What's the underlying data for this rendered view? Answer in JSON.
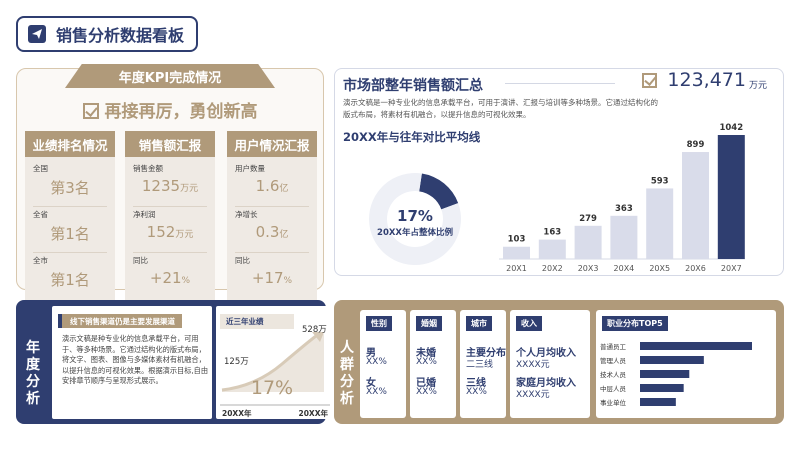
{
  "header": {
    "title": "销售分析数据看板"
  },
  "kpi": {
    "title": "年度KPI完成情况",
    "slogan": "再接再厉，勇创新高",
    "columns": [
      {
        "title": "业绩排名情况",
        "cells": [
          {
            "label": "全国",
            "value": "第3名",
            "unit": ""
          },
          {
            "label": "全省",
            "value": "第1名",
            "unit": ""
          },
          {
            "label": "全市",
            "value": "第1名",
            "unit": ""
          }
        ]
      },
      {
        "title": "销售额汇报",
        "cells": [
          {
            "label": "销售金额",
            "value": "1235",
            "unit": "万元"
          },
          {
            "label": "净利润",
            "value": "152",
            "unit": "万元"
          },
          {
            "label": "同比",
            "value": "+21",
            "unit": "%"
          }
        ]
      },
      {
        "title": "用户情况汇报",
        "cells": [
          {
            "label": "用户数量",
            "value": "1.6",
            "unit": "亿"
          },
          {
            "label": "净增长",
            "value": "0.3",
            "unit": "亿"
          },
          {
            "label": "同比",
            "value": "+17",
            "unit": "%"
          }
        ]
      }
    ]
  },
  "market": {
    "title": "市场部整年销售额汇总",
    "total": "123,471",
    "total_unit": "万元",
    "description": "演示文稿是一种专业化的信息承载平台，可用于演讲、汇报与培训等多种场景。它通过结构化的版式布局，将素材有机融合，以提升信息的可视化效果。",
    "chart_title": "20XX年与往年对比平均线",
    "donut_value": "17%",
    "donut_label": "20XX年占整体比例"
  },
  "annual": {
    "title": "年度分析",
    "channel_tag": "线下销售渠道仍是主要发展渠道",
    "channel_desc": "演示文稿是种专业化的信息承载平台，可用于、等多种场景。它通过结构化的版式布局，将文字、图表、图像与多媒体素材有机融合，以提升信息的可视化效果。根据演示目标,自由安排章节顺序与呈现形式展示。",
    "three_year_tag": "近三年业绩",
    "start_value": "125万",
    "end_value": "528万",
    "growth": "17%",
    "start_label": "20XX年",
    "end_label": "20XX年"
  },
  "crowd": {
    "title": "人群分析",
    "columns": [
      {
        "head": "性别",
        "items": [
          {
            "label": "男",
            "value": "XX%"
          },
          {
            "label": "女",
            "value": "XX%"
          }
        ]
      },
      {
        "head": "婚姻",
        "items": [
          {
            "label": "未婚",
            "value": "XX%"
          },
          {
            "label": "已婚",
            "value": "XX%"
          }
        ]
      },
      {
        "head": "城市",
        "items": [
          {
            "label": "主要分布",
            "value": "二三线"
          },
          {
            "label": "三线",
            "value": "XX%"
          }
        ]
      },
      {
        "head": "收入",
        "items": [
          {
            "label": "个人月均收入",
            "value": "XXXX元"
          },
          {
            "label": "家庭月均收入",
            "value": "XXXX元"
          }
        ]
      }
    ],
    "occupation_title": "职业分布TOP5"
  },
  "chart_data": [
    {
      "type": "bar",
      "title": "20XX年与往年对比平均线",
      "categories": [
        "20X1",
        "20X2",
        "20X3",
        "20X4",
        "20X5",
        "20X6",
        "20X7"
      ],
      "values": [
        103,
        163,
        279,
        363,
        593,
        899,
        1042
      ],
      "ylim": [
        0,
        1042
      ],
      "grid": false,
      "colors": [
        "#d9dcea",
        "#d9dcea",
        "#d9dcea",
        "#d9dcea",
        "#d9dcea",
        "#d9dcea",
        "#2f3e70"
      ]
    },
    {
      "type": "pie",
      "title": "20XX年占整体比例",
      "values": [
        17,
        83
      ],
      "colors": [
        "#2f3e70",
        "#eef0f6"
      ]
    },
    {
      "type": "bar",
      "orientation": "horizontal",
      "title": "职业分布TOP5",
      "categories": [
        "普通员工",
        "管理人员",
        "技术人员",
        "中层人员",
        "事业单位"
      ],
      "values": [
        1.0,
        0.57,
        0.44,
        0.39,
        0.32
      ],
      "color": "#2f3e70"
    }
  ]
}
